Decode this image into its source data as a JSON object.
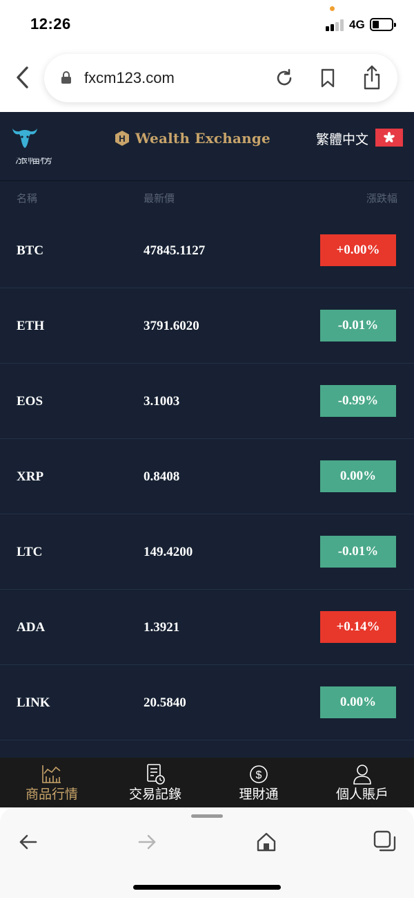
{
  "status_bar": {
    "time": "12:26",
    "network": "4G"
  },
  "browser": {
    "url": "fxcm123.com"
  },
  "header": {
    "brand": "Wealth Exchange",
    "brand_badge": "H",
    "language": "繁體中文"
  },
  "page": {
    "partial_title": "漲幅榜"
  },
  "columns": {
    "name": "名稱",
    "price": "最新價",
    "change": "漲跌幅"
  },
  "markets": [
    {
      "symbol": "BTC",
      "price": "47845.1127",
      "change": "+0.00%",
      "direction": "up"
    },
    {
      "symbol": "ETH",
      "price": "3791.6020",
      "change": "-0.01%",
      "direction": "down"
    },
    {
      "symbol": "EOS",
      "price": "3.1003",
      "change": "-0.99%",
      "direction": "down"
    },
    {
      "symbol": "XRP",
      "price": "0.8408",
      "change": "0.00%",
      "direction": "down"
    },
    {
      "symbol": "LTC",
      "price": "149.4200",
      "change": "-0.01%",
      "direction": "down"
    },
    {
      "symbol": "ADA",
      "price": "1.3921",
      "change": "+0.14%",
      "direction": "up"
    },
    {
      "symbol": "LINK",
      "price": "20.5840",
      "change": "0.00%",
      "direction": "down"
    }
  ],
  "tabs": [
    {
      "label": "商品行情",
      "icon": "chart-icon",
      "active": true
    },
    {
      "label": "交易記錄",
      "icon": "document-clock-icon",
      "active": false
    },
    {
      "label": "理財通",
      "icon": "dollar-icon",
      "active": false
    },
    {
      "label": "個人賬戶",
      "icon": "person-icon",
      "active": false
    }
  ],
  "colors": {
    "background": "#172133",
    "up": "#e8372b",
    "down": "#4aa98a",
    "accent": "#c8a46a",
    "tabbar": "#1a1a1a"
  }
}
